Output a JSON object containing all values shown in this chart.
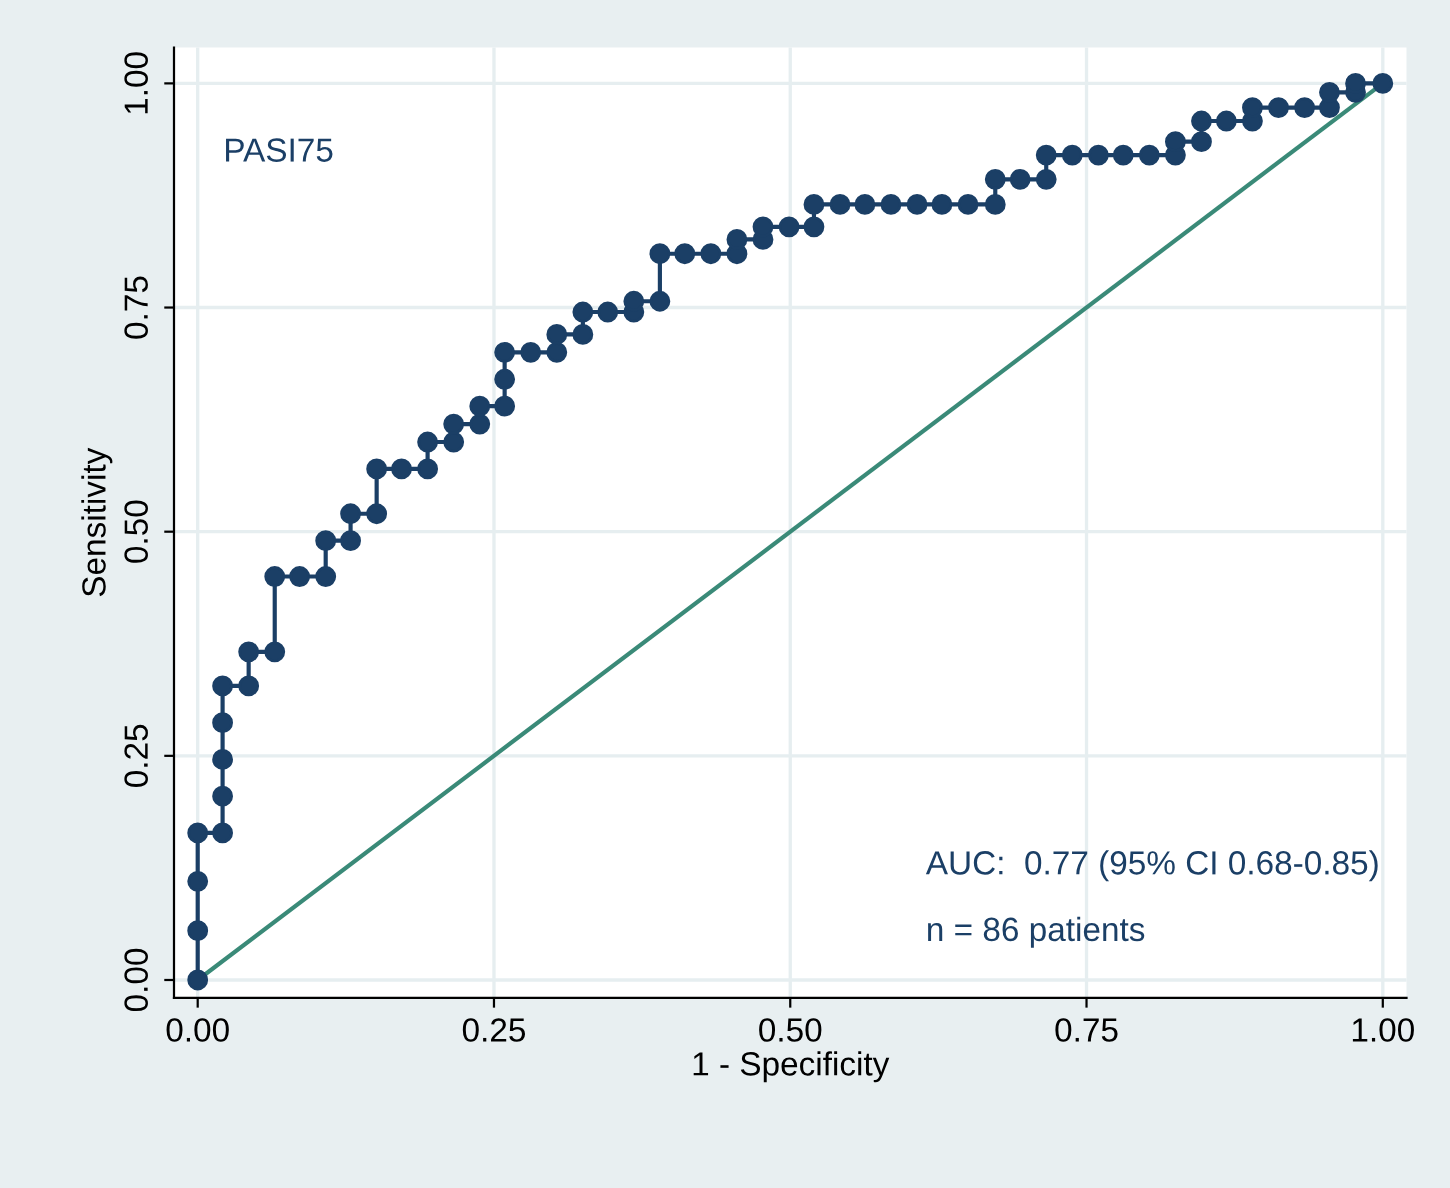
{
  "chart_data": {
    "type": "line",
    "xlabel": "1 - Specificity",
    "ylabel": "Sensitivity",
    "xlim": [
      -0.02,
      1.02
    ],
    "ylim": [
      -0.02,
      1.04
    ],
    "xticks": [
      {
        "value": 0,
        "label": "0.00"
      },
      {
        "value": 0.25,
        "label": "0.25"
      },
      {
        "value": 0.5,
        "label": "0.50"
      },
      {
        "value": 0.75,
        "label": "0.75"
      },
      {
        "value": 1,
        "label": "1.00"
      }
    ],
    "yticks": [
      {
        "value": 0,
        "label": "0.00"
      },
      {
        "value": 0.25,
        "label": "0.25"
      },
      {
        "value": 0.5,
        "label": "0.50"
      },
      {
        "value": 0.75,
        "label": "0.75"
      },
      {
        "value": 1,
        "label": "1.00"
      }
    ],
    "grid": true,
    "annotations": [
      "PASI75",
      "AUC:  0.77 (95% CI 0.68-0.85)",
      "n = 86 patients"
    ],
    "series": [
      {
        "color": "#1b3f66",
        "marker": "circle",
        "x": [
          0,
          0,
          0,
          0,
          0.021,
          0.021,
          0.021,
          0.021,
          0.021,
          0.043,
          0.043,
          0.065,
          0.065,
          0.086,
          0.108,
          0.108,
          0.129,
          0.129,
          0.151,
          0.151,
          0.172,
          0.194,
          0.194,
          0.216,
          0.216,
          0.238,
          0.238,
          0.259,
          0.259,
          0.259,
          0.281,
          0.303,
          0.303,
          0.325,
          0.325,
          0.346,
          0.368,
          0.368,
          0.39,
          0.39,
          0.411,
          0.433,
          0.455,
          0.455,
          0.477,
          0.477,
          0.499,
          0.52,
          0.52,
          0.542,
          0.563,
          0.585,
          0.607,
          0.628,
          0.65,
          0.673,
          0.673,
          0.694,
          0.716,
          0.716,
          0.738,
          0.76,
          0.781,
          0.803,
          0.825,
          0.825,
          0.847,
          0.847,
          0.868,
          0.89,
          0.89,
          0.912,
          0.934,
          0.955,
          0.955,
          0.977,
          0.977,
          1.0
        ],
        "values": [
          0,
          0.055,
          0.11,
          0.164,
          0.164,
          0.205,
          0.246,
          0.287,
          0.328,
          0.328,
          0.366,
          0.366,
          0.45,
          0.45,
          0.45,
          0.49,
          0.49,
          0.52,
          0.52,
          0.57,
          0.57,
          0.57,
          0.6,
          0.6,
          0.62,
          0.62,
          0.64,
          0.64,
          0.67,
          0.7,
          0.7,
          0.7,
          0.72,
          0.72,
          0.745,
          0.745,
          0.745,
          0.757,
          0.757,
          0.81,
          0.81,
          0.81,
          0.81,
          0.826,
          0.826,
          0.84,
          0.84,
          0.84,
          0.865,
          0.865,
          0.865,
          0.865,
          0.865,
          0.865,
          0.865,
          0.865,
          0.893,
          0.893,
          0.893,
          0.92,
          0.92,
          0.92,
          0.92,
          0.92,
          0.92,
          0.935,
          0.935,
          0.958,
          0.958,
          0.958,
          0.973,
          0.973,
          0.973,
          0.973,
          0.99,
          0.99,
          1.0,
          1.0
        ]
      },
      {
        "color": "#3a8a78",
        "marker": "none",
        "x": [
          0,
          1
        ],
        "values": [
          0,
          1
        ]
      }
    ]
  }
}
